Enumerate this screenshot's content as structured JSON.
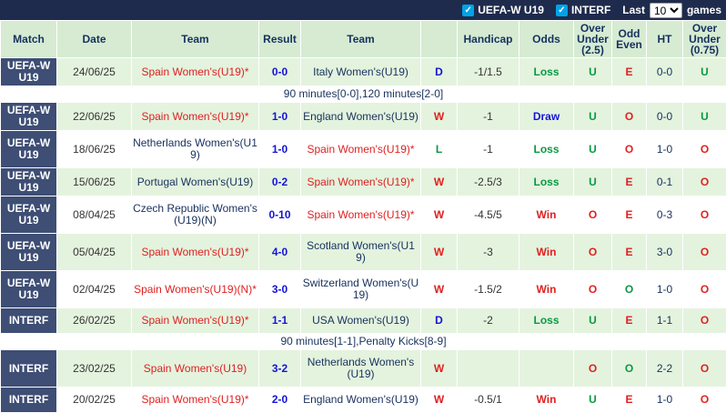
{
  "topbar": {
    "check_glyph": "✓",
    "filters": [
      {
        "label": "UEFA-W U19",
        "checked": true
      },
      {
        "label": "INTERF",
        "checked": true
      }
    ],
    "last_label": "Last",
    "select_value": "10",
    "games_label": "games"
  },
  "colors": {
    "topbar_bg": "#1f2b4d",
    "match_column_bg": "#3e4e74",
    "header_bg": "#d6ebd2",
    "row_green": "#e4f3de",
    "checkbox_blue": "#00a2e8",
    "win_red": "#e02020",
    "draw_blue": "#1414d8",
    "loss_green": "#089944",
    "team_navy": "#17315e"
  },
  "table": {
    "headers": [
      "Match",
      "Date",
      "Team",
      "Result",
      "Team",
      "",
      "Handicap",
      "Odds",
      "Over Under (2.5)",
      "Odd Even",
      "HT",
      "Over Under (0.75)"
    ],
    "columns": [
      {
        "name": "competition",
        "cls": "matchcol",
        "inter": false
      },
      {
        "name": "date",
        "cls": "date",
        "inter": false
      },
      {
        "name": "home-team",
        "cls": "team",
        "inter": true
      },
      {
        "name": "score",
        "cls": "score",
        "inter": false
      },
      {
        "name": "away-team",
        "cls": "team",
        "inter": true
      },
      {
        "name": "outcome",
        "cls": "wdl",
        "inter": false
      },
      {
        "name": "handicap",
        "cls": "num",
        "inter": false
      },
      {
        "name": "odds-result",
        "cls": "odds",
        "inter": false
      },
      {
        "name": "over-under-2-5",
        "cls": "ou",
        "inter": false
      },
      {
        "name": "odd-even",
        "cls": "ou",
        "inter": false
      },
      {
        "name": "ht-score",
        "cls": "ht",
        "inter": false
      },
      {
        "name": "over-under-0-75",
        "cls": "ou",
        "inter": false
      }
    ],
    "rows": [
      {
        "type": "match",
        "bg": "green",
        "cells": [
          {
            "t": "UEFA-W U19",
            "c": "white"
          },
          {
            "t": "24/06/25",
            "c": "dark"
          },
          {
            "t": "Spain Women's(U19)*",
            "c": "red"
          },
          {
            "t": "0-0",
            "c": "blue"
          },
          {
            "t": "Italy Women's(U19)",
            "c": "navy"
          },
          {
            "t": "D",
            "c": "blue"
          },
          {
            "t": "-1/1.5",
            "c": "dark"
          },
          {
            "t": "Loss",
            "c": "green"
          },
          {
            "t": "U",
            "c": "green"
          },
          {
            "t": "E",
            "c": "red"
          },
          {
            "t": "0-0",
            "c": "navy"
          },
          {
            "t": "U",
            "c": "green"
          }
        ]
      },
      {
        "type": "note",
        "bg": "white",
        "text": "90 minutes[0-0],120 minutes[2-0]"
      },
      {
        "type": "match",
        "bg": "green",
        "cells": [
          {
            "t": "UEFA-W U19",
            "c": "white"
          },
          {
            "t": "22/06/25",
            "c": "dark"
          },
          {
            "t": "Spain Women's(U19)*",
            "c": "red"
          },
          {
            "t": "1-0",
            "c": "blue"
          },
          {
            "t": "England Women's(U19)",
            "c": "navy"
          },
          {
            "t": "W",
            "c": "red"
          },
          {
            "t": "-1",
            "c": "dark"
          },
          {
            "t": "Draw",
            "c": "blue"
          },
          {
            "t": "U",
            "c": "green"
          },
          {
            "t": "O",
            "c": "red"
          },
          {
            "t": "0-0",
            "c": "navy"
          },
          {
            "t": "U",
            "c": "green"
          }
        ]
      },
      {
        "type": "match",
        "bg": "white",
        "cells": [
          {
            "t": "UEFA-W U19",
            "c": "white"
          },
          {
            "t": "18/06/25",
            "c": "dark"
          },
          {
            "t": "Netherlands Women's(U19)",
            "c": "navy"
          },
          {
            "t": "1-0",
            "c": "blue"
          },
          {
            "t": "Spain Women's(U19)*",
            "c": "red"
          },
          {
            "t": "L",
            "c": "green"
          },
          {
            "t": "-1",
            "c": "dark"
          },
          {
            "t": "Loss",
            "c": "green"
          },
          {
            "t": "U",
            "c": "green"
          },
          {
            "t": "O",
            "c": "red"
          },
          {
            "t": "1-0",
            "c": "navy"
          },
          {
            "t": "O",
            "c": "red"
          }
        ]
      },
      {
        "type": "match",
        "bg": "green",
        "cells": [
          {
            "t": "UEFA-W U19",
            "c": "white"
          },
          {
            "t": "15/06/25",
            "c": "dark"
          },
          {
            "t": "Portugal Women's(U19)",
            "c": "navy"
          },
          {
            "t": "0-2",
            "c": "blue"
          },
          {
            "t": "Spain Women's(U19)*",
            "c": "red"
          },
          {
            "t": "W",
            "c": "red"
          },
          {
            "t": "-2.5/3",
            "c": "dark"
          },
          {
            "t": "Loss",
            "c": "green"
          },
          {
            "t": "U",
            "c": "green"
          },
          {
            "t": "E",
            "c": "red"
          },
          {
            "t": "0-1",
            "c": "navy"
          },
          {
            "t": "O",
            "c": "red"
          }
        ]
      },
      {
        "type": "match",
        "bg": "white",
        "cells": [
          {
            "t": "UEFA-W U19",
            "c": "white"
          },
          {
            "t": "08/04/25",
            "c": "dark"
          },
          {
            "t": "Czech Republic Women's (U19)(N)",
            "c": "navy"
          },
          {
            "t": "0-10",
            "c": "blue"
          },
          {
            "t": "Spain Women's(U19)*",
            "c": "red"
          },
          {
            "t": "W",
            "c": "red"
          },
          {
            "t": "-4.5/5",
            "c": "dark"
          },
          {
            "t": "Win",
            "c": "red"
          },
          {
            "t": "O",
            "c": "red"
          },
          {
            "t": "E",
            "c": "red"
          },
          {
            "t": "0-3",
            "c": "navy"
          },
          {
            "t": "O",
            "c": "red"
          }
        ]
      },
      {
        "type": "match",
        "bg": "green",
        "cells": [
          {
            "t": "UEFA-W U19",
            "c": "white"
          },
          {
            "t": "05/04/25",
            "c": "dark"
          },
          {
            "t": "Spain Women's(U19)*",
            "c": "red"
          },
          {
            "t": "4-0",
            "c": "blue"
          },
          {
            "t": "Scotland Women's(U19)",
            "c": "navy"
          },
          {
            "t": "W",
            "c": "red"
          },
          {
            "t": "-3",
            "c": "dark"
          },
          {
            "t": "Win",
            "c": "red"
          },
          {
            "t": "O",
            "c": "red"
          },
          {
            "t": "E",
            "c": "red"
          },
          {
            "t": "3-0",
            "c": "navy"
          },
          {
            "t": "O",
            "c": "red"
          }
        ]
      },
      {
        "type": "match",
        "bg": "white",
        "cells": [
          {
            "t": "UEFA-W U19",
            "c": "white"
          },
          {
            "t": "02/04/25",
            "c": "dark"
          },
          {
            "t": "Spain Women's(U19)(N)*",
            "c": "red"
          },
          {
            "t": "3-0",
            "c": "blue"
          },
          {
            "t": "Switzerland Women's(U19)",
            "c": "navy"
          },
          {
            "t": "W",
            "c": "red"
          },
          {
            "t": "-1.5/2",
            "c": "dark"
          },
          {
            "t": "Win",
            "c": "red"
          },
          {
            "t": "O",
            "c": "red"
          },
          {
            "t": "O",
            "c": "green"
          },
          {
            "t": "1-0",
            "c": "navy"
          },
          {
            "t": "O",
            "c": "red"
          }
        ]
      },
      {
        "type": "match",
        "bg": "green",
        "cells": [
          {
            "t": "INTERF",
            "c": "white"
          },
          {
            "t": "26/02/25",
            "c": "dark"
          },
          {
            "t": "Spain Women's(U19)*",
            "c": "red"
          },
          {
            "t": "1-1",
            "c": "blue"
          },
          {
            "t": "USA Women's(U19)",
            "c": "navy"
          },
          {
            "t": "D",
            "c": "blue"
          },
          {
            "t": "-2",
            "c": "dark"
          },
          {
            "t": "Loss",
            "c": "green"
          },
          {
            "t": "U",
            "c": "green"
          },
          {
            "t": "E",
            "c": "red"
          },
          {
            "t": "1-1",
            "c": "navy"
          },
          {
            "t": "O",
            "c": "red"
          }
        ]
      },
      {
        "type": "note",
        "bg": "white",
        "text": "90 minutes[1-1],Penalty Kicks[8-9]"
      },
      {
        "type": "match",
        "bg": "green",
        "cells": [
          {
            "t": "INTERF",
            "c": "white"
          },
          {
            "t": "23/02/25",
            "c": "dark"
          },
          {
            "t": "Spain Women's(U19)",
            "c": "red"
          },
          {
            "t": "3-2",
            "c": "blue"
          },
          {
            "t": "Netherlands Women's(U19)",
            "c": "navy"
          },
          {
            "t": "W",
            "c": "red"
          },
          {
            "t": "",
            "c": "dark"
          },
          {
            "t": "",
            "c": "dark"
          },
          {
            "t": "O",
            "c": "red"
          },
          {
            "t": "O",
            "c": "green"
          },
          {
            "t": "2-2",
            "c": "navy"
          },
          {
            "t": "O",
            "c": "red"
          }
        ]
      },
      {
        "type": "match",
        "bg": "white",
        "cells": [
          {
            "t": "INTERF",
            "c": "white"
          },
          {
            "t": "20/02/25",
            "c": "dark"
          },
          {
            "t": "Spain Women's(U19)*",
            "c": "red"
          },
          {
            "t": "2-0",
            "c": "blue"
          },
          {
            "t": "England Women's(U19)",
            "c": "navy"
          },
          {
            "t": "W",
            "c": "red"
          },
          {
            "t": "-0.5/1",
            "c": "dark"
          },
          {
            "t": "Win",
            "c": "red"
          },
          {
            "t": "U",
            "c": "green"
          },
          {
            "t": "E",
            "c": "red"
          },
          {
            "t": "1-0",
            "c": "navy"
          },
          {
            "t": "O",
            "c": "red"
          }
        ]
      }
    ]
  }
}
